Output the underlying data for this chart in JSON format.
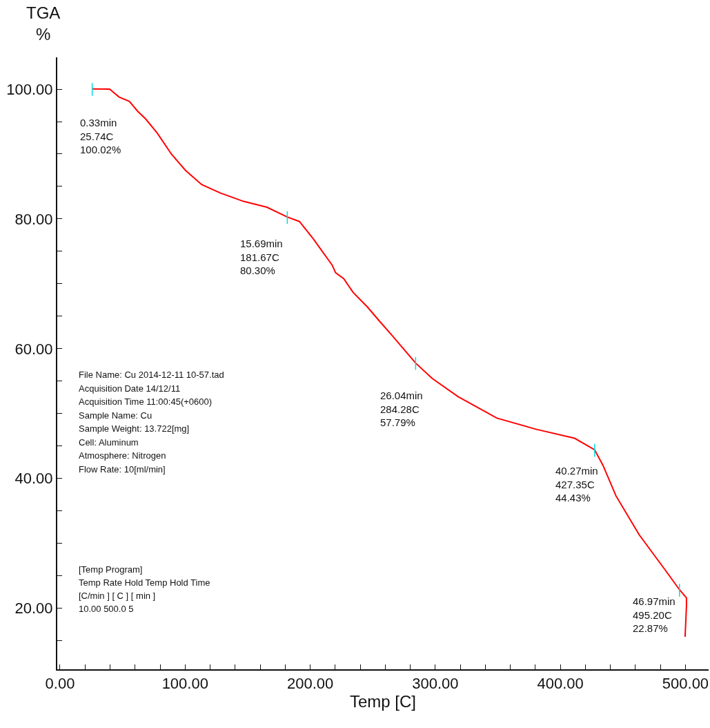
{
  "chart_data": {
    "type": "line",
    "xlabel": "Temp [C]",
    "ylabel": "TGA\n%",
    "xlim": [
      -2.2,
      518.5
    ],
    "ylim": [
      10.6,
      104.9
    ],
    "xticks": [
      {
        "value": 0,
        "label": "0.00"
      },
      {
        "value": 20,
        "label": null
      },
      {
        "value": 40,
        "label": null
      },
      {
        "value": 60,
        "label": null
      },
      {
        "value": 80,
        "label": null
      },
      {
        "value": 100,
        "label": "100.00"
      },
      {
        "value": 120,
        "label": null
      },
      {
        "value": 140,
        "label": null
      },
      {
        "value": 160,
        "label": null
      },
      {
        "value": 180,
        "label": null
      },
      {
        "value": 200,
        "label": "200.00"
      },
      {
        "value": 220,
        "label": null
      },
      {
        "value": 240,
        "label": null
      },
      {
        "value": 260,
        "label": null
      },
      {
        "value": 280,
        "label": null
      },
      {
        "value": 300,
        "label": "300.00"
      },
      {
        "value": 320,
        "label": null
      },
      {
        "value": 340,
        "label": null
      },
      {
        "value": 360,
        "label": null
      },
      {
        "value": 380,
        "label": null
      },
      {
        "value": 400,
        "label": "400.00"
      },
      {
        "value": 420,
        "label": null
      },
      {
        "value": 440,
        "label": null
      },
      {
        "value": 460,
        "label": null
      },
      {
        "value": 480,
        "label": null
      },
      {
        "value": 500,
        "label": "500.00"
      }
    ],
    "yticks": [
      {
        "value": 15,
        "label": null
      },
      {
        "value": 20,
        "label": "20.00"
      },
      {
        "value": 25,
        "label": null
      },
      {
        "value": 30,
        "label": null
      },
      {
        "value": 35,
        "label": null
      },
      {
        "value": 40,
        "label": "40.00"
      },
      {
        "value": 45,
        "label": null
      },
      {
        "value": 50,
        "label": null
      },
      {
        "value": 55,
        "label": null
      },
      {
        "value": 60,
        "label": "60.00"
      },
      {
        "value": 65,
        "label": null
      },
      {
        "value": 70,
        "label": null
      },
      {
        "value": 75,
        "label": null
      },
      {
        "value": 80,
        "label": "80.00"
      },
      {
        "value": 85,
        "label": null
      },
      {
        "value": 90,
        "label": null
      },
      {
        "value": 95,
        "label": null
      },
      {
        "value": 100,
        "label": "100.00"
      }
    ],
    "marker": "none",
    "line_style": "solid",
    "series": [
      {
        "color": "#ff0000",
        "x": [
          25.74,
          39.7,
          47.1,
          55.5,
          62.0,
          68.5,
          77.8,
          89.0,
          100.2,
          113.2,
          128.1,
          146.8,
          165.4,
          181.67,
          191.4,
          202.6,
          217.5,
          220.3,
          226.8,
          234.2,
          245.9,
          254.7,
          266.5,
          284.28,
          297.6,
          318.3,
          349.3,
          380.3,
          411.4,
          427.35,
          434.1,
          444.5,
          463.1,
          483.8,
          495.2,
          500.8,
          500.8,
          499.7
        ],
        "values": [
          100.02,
          100.0,
          98.8,
          98.1,
          96.6,
          95.4,
          93.2,
          90.0,
          87.5,
          85.3,
          84.0,
          82.7,
          81.8,
          80.3,
          79.6,
          76.9,
          72.9,
          71.7,
          70.8,
          68.7,
          66.4,
          64.4,
          61.8,
          57.79,
          55.4,
          52.6,
          49.3,
          47.6,
          46.2,
          44.43,
          42.0,
          37.3,
          31.3,
          25.9,
          22.87,
          21.6,
          20.4,
          15.6
        ]
      }
    ],
    "annotations": [
      {
        "text": "0.33min\n25.74C\n100.02%",
        "x": 25.74,
        "y": 100.02
      },
      {
        "text": "15.69min\n181.67C\n80.30%",
        "x": 181.67,
        "y": 80.3
      },
      {
        "text": "26.04min\n284.28C\n57.79%",
        "x": 284.28,
        "y": 57.79
      },
      {
        "text": "40.27min\n427.35C\n44.43%",
        "x": 427.35,
        "y": 44.43
      },
      {
        "text": "46.97min\n495.20C\n22.87%",
        "x": 495.2,
        "y": 22.87
      },
      "File Name: Cu 2014-12-11 10-57.tad",
      "Acquisition Date 14/12/11",
      "Acquisition Time 11:00:45(+0600)",
      "Sample Name: Cu",
      "Sample Weight: 13.722[mg]",
      "Cell: Aluminum",
      "Atmosphere: Nitrogen",
      "Flow Rate: 10[ml/min]",
      "[Temp Program]",
      "Temp Rate Hold Temp Hold Time",
      "[C/min ] [ C ] [ min ]",
      "10.00 500.0 5"
    ]
  }
}
